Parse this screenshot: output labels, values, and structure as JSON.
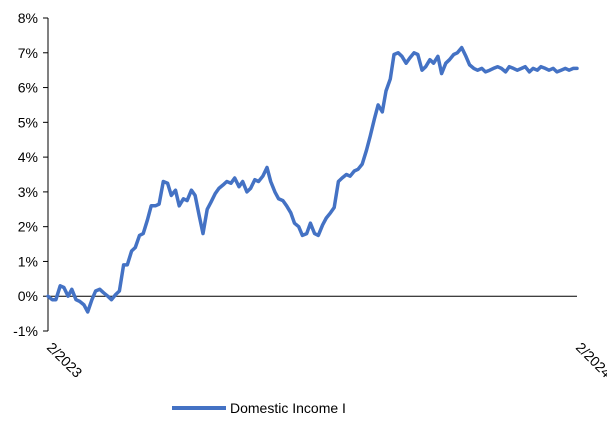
{
  "chart_data": {
    "type": "line",
    "title": "",
    "xlabel": "",
    "ylabel": "",
    "ylim": [
      -1,
      8
    ],
    "yticks": [
      -1,
      0,
      1,
      2,
      3,
      4,
      5,
      6,
      7,
      8
    ],
    "ytick_labels": [
      "-1%",
      "0%",
      "1%",
      "2%",
      "3%",
      "4%",
      "5%",
      "6%",
      "7%",
      "8%"
    ],
    "x_range": [
      "2023-02",
      "2024-02"
    ],
    "xtick_labels": [
      "2/2023",
      "2/2024"
    ],
    "grid": false,
    "legend_position": "bottom",
    "series": [
      {
        "name": "Domestic Income I",
        "color": "#4472C4",
        "x": [
          0,
          0.8,
          1.5,
          2.3,
          3.0,
          3.8,
          4.5,
          5.3,
          6.0,
          6.8,
          7.5,
          8.3,
          9.0,
          9.8,
          10.5,
          11.3,
          12.0,
          12.8,
          13.5,
          14.3,
          15.0,
          15.8,
          16.5,
          17.3,
          18.0,
          18.8,
          19.5,
          20.3,
          21.0,
          21.8,
          22.6,
          23.3,
          24.1,
          24.8,
          25.6,
          26.3,
          27.1,
          27.8,
          28.6,
          29.3,
          30.1,
          30.8,
          31.6,
          32.3,
          33.1,
          33.8,
          34.6,
          35.3,
          36.1,
          36.8,
          37.6,
          38.3,
          39.1,
          39.8,
          40.6,
          41.4,
          42.1,
          42.9,
          43.6,
          44.4,
          45.1,
          45.9,
          46.6,
          47.4,
          48.1,
          48.9,
          49.6,
          50.4,
          51.1,
          51.9,
          52.6,
          53.4,
          54.1,
          54.9,
          55.6,
          56.4,
          57.1,
          57.9,
          58.6,
          59.4,
          60.2,
          60.9,
          61.7,
          62.4,
          63.2,
          63.9,
          64.7,
          65.4,
          66.2,
          66.9,
          67.7,
          68.4,
          69.2,
          69.9,
          70.7,
          71.4,
          72.2,
          72.9,
          73.7,
          74.4,
          75.2,
          75.9,
          76.7,
          77.4,
          78.2,
          79.0,
          79.7,
          80.5,
          81.2,
          82.0,
          82.7,
          83.5,
          84.2,
          85.0,
          85.7,
          86.5,
          87.2,
          88.0,
          88.7,
          89.5,
          90.2,
          91.0,
          91.7,
          92.5,
          93.2,
          94.0,
          94.7,
          95.5,
          96.2,
          97.0,
          97.8,
          98.5,
          99.3,
          100
        ],
        "values": [
          0.0,
          -0.1,
          -0.1,
          0.3,
          0.25,
          0.0,
          0.2,
          -0.1,
          -0.15,
          -0.25,
          -0.45,
          -0.1,
          0.15,
          0.2,
          0.1,
          0.0,
          -0.1,
          0.05,
          0.15,
          0.9,
          0.9,
          1.3,
          1.4,
          1.75,
          1.8,
          2.2,
          2.6,
          2.6,
          2.65,
          3.3,
          3.25,
          2.9,
          3.05,
          2.6,
          2.8,
          2.75,
          3.05,
          2.9,
          2.3,
          1.8,
          2.5,
          2.7,
          2.95,
          3.1,
          3.2,
          3.3,
          3.25,
          3.4,
          3.15,
          3.3,
          3.0,
          3.1,
          3.35,
          3.3,
          3.45,
          3.7,
          3.3,
          3.0,
          2.8,
          2.75,
          2.6,
          2.4,
          2.1,
          2.0,
          1.75,
          1.8,
          2.1,
          1.8,
          1.75,
          2.05,
          2.25,
          2.4,
          2.55,
          3.3,
          3.4,
          3.5,
          3.45,
          3.6,
          3.65,
          3.8,
          4.2,
          4.6,
          5.1,
          5.5,
          5.3,
          5.9,
          6.25,
          6.95,
          7.0,
          6.9,
          6.7,
          6.85,
          7.0,
          6.95,
          6.5,
          6.6,
          6.8,
          6.7,
          6.9,
          6.4,
          6.7,
          6.8,
          6.95,
          7.0,
          7.15,
          6.9,
          6.65,
          6.55,
          6.5,
          6.55,
          6.45,
          6.5,
          6.55,
          6.6,
          6.55,
          6.45,
          6.6,
          6.55,
          6.5,
          6.55,
          6.6,
          6.45,
          6.55,
          6.5,
          6.6,
          6.55,
          6.5,
          6.55,
          6.45,
          6.5,
          6.55,
          6.5,
          6.55,
          6.55
        ]
      }
    ]
  }
}
